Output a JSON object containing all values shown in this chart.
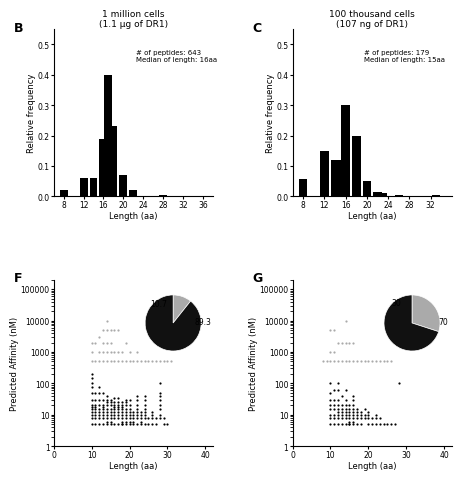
{
  "panel_B": {
    "label": "B",
    "title": "1 million cells\n(1.1 μg of DR1)",
    "annotation": "# of peptides: 643\nMedian of length: 16aa",
    "xlabel": "Length (aa)",
    "ylabel": "Relative frequency",
    "xlim": [
      6,
      38
    ],
    "xticks": [
      8,
      12,
      16,
      20,
      24,
      28,
      32,
      36
    ],
    "ylim": [
      0,
      0.55
    ],
    "yticks": [
      0.0,
      0.1,
      0.2,
      0.3,
      0.4,
      0.5
    ],
    "bar_positions": [
      8,
      12,
      14,
      16,
      17,
      18,
      20,
      22,
      28
    ],
    "bar_heights": [
      0.02,
      0.06,
      0.06,
      0.19,
      0.4,
      0.23,
      0.07,
      0.02,
      0.005
    ]
  },
  "panel_C": {
    "label": "C",
    "title": "100 thousand cells\n(107 ng of DR1)",
    "annotation": "# of peptides: 179\nMedian of length: 15aa",
    "xlabel": "Length (aa)",
    "ylabel": "Relative frequency",
    "xlim": [
      6,
      36
    ],
    "xticks": [
      8,
      12,
      16,
      20,
      24,
      28,
      32
    ],
    "ylim": [
      0,
      0.55
    ],
    "yticks": [
      0.0,
      0.1,
      0.2,
      0.3,
      0.4,
      0.5
    ],
    "bar_positions": [
      8,
      12,
      14,
      15,
      16,
      18,
      20,
      22,
      23,
      26,
      33
    ],
    "bar_heights": [
      0.055,
      0.15,
      0.12,
      0.12,
      0.3,
      0.2,
      0.05,
      0.015,
      0.01,
      0.005,
      0.005
    ]
  },
  "panel_F": {
    "label": "F",
    "xlabel": "Length (aa)",
    "ylabel": "Predicted Affinity (nM)",
    "xlim": [
      0,
      42
    ],
    "xticks": [
      0,
      10,
      20,
      30,
      40
    ],
    "pie_values": [
      10.7,
      89.3
    ],
    "pie_colors": [
      "#aaaaaa",
      "#111111"
    ],
    "pie_labels": [
      "10.7",
      "89.3"
    ],
    "black_dots_x": [
      10,
      10,
      10,
      10,
      10,
      10,
      10,
      10,
      10,
      10,
      10,
      10,
      10,
      11,
      11,
      11,
      11,
      11,
      11,
      11,
      11,
      11,
      12,
      12,
      12,
      12,
      12,
      12,
      12,
      12,
      12,
      13,
      13,
      13,
      13,
      13,
      13,
      13,
      13,
      13,
      14,
      14,
      14,
      14,
      14,
      14,
      14,
      14,
      14,
      14,
      15,
      15,
      15,
      15,
      15,
      15,
      15,
      15,
      15,
      16,
      16,
      16,
      16,
      16,
      16,
      16,
      16,
      16,
      17,
      17,
      17,
      17,
      17,
      17,
      17,
      17,
      17,
      18,
      18,
      18,
      18,
      18,
      18,
      18,
      18,
      18,
      18,
      19,
      19,
      19,
      19,
      19,
      19,
      19,
      19,
      19,
      20,
      20,
      20,
      20,
      20,
      20,
      20,
      20,
      21,
      21,
      21,
      21,
      21,
      22,
      22,
      22,
      22,
      22,
      22,
      22,
      22,
      23,
      23,
      23,
      23,
      23,
      24,
      24,
      24,
      24,
      24,
      24,
      24,
      24,
      25,
      25,
      26,
      26,
      26,
      26,
      27,
      27,
      28,
      28,
      28,
      28,
      28,
      28,
      28,
      28,
      29,
      29,
      30
    ],
    "black_dots_y": [
      5,
      8,
      10,
      12,
      15,
      18,
      20,
      30,
      50,
      80,
      100,
      150,
      200,
      5,
      8,
      10,
      12,
      15,
      18,
      20,
      30,
      50,
      5,
      8,
      10,
      12,
      15,
      20,
      30,
      50,
      80,
      5,
      8,
      10,
      12,
      15,
      18,
      20,
      30,
      50,
      5,
      6,
      8,
      10,
      12,
      15,
      20,
      25,
      30,
      40,
      5,
      6,
      8,
      10,
      12,
      15,
      20,
      25,
      30,
      5,
      8,
      10,
      12,
      15,
      18,
      20,
      25,
      35,
      5,
      8,
      10,
      12,
      15,
      18,
      20,
      25,
      35,
      5,
      6,
      8,
      10,
      12,
      15,
      18,
      20,
      25,
      5,
      6,
      8,
      10,
      12,
      15,
      20,
      25,
      30,
      5,
      6,
      8,
      10,
      12,
      15,
      20,
      30,
      5,
      6,
      8,
      10,
      12,
      5,
      8,
      10,
      12,
      15,
      20,
      30,
      40,
      5,
      6,
      8,
      10,
      12,
      5,
      8,
      10,
      12,
      15,
      20,
      30,
      40,
      5,
      8,
      5,
      8,
      10,
      12,
      5,
      8,
      5,
      8,
      10,
      15,
      20,
      30,
      40,
      50,
      100,
      5,
      8,
      5
    ],
    "gray_dots_x": [
      10,
      10,
      10,
      11,
      11,
      12,
      12,
      12,
      13,
      13,
      13,
      13,
      14,
      14,
      14,
      14,
      14,
      15,
      15,
      15,
      15,
      16,
      16,
      16,
      17,
      17,
      17,
      18,
      18,
      19,
      19,
      20,
      20,
      21,
      22,
      22,
      23,
      24,
      25,
      26,
      27,
      28,
      29,
      30,
      31
    ],
    "gray_dots_y": [
      500,
      1000,
      2000,
      500,
      2000,
      500,
      1000,
      3000,
      500,
      1000,
      2000,
      5000,
      500,
      1000,
      2000,
      5000,
      10000,
      500,
      1000,
      2000,
      5000,
      500,
      1000,
      5000,
      500,
      1000,
      5000,
      500,
      1000,
      500,
      2000,
      500,
      1000,
      500,
      500,
      1000,
      500,
      500,
      500,
      500,
      500,
      500,
      500,
      500,
      500
    ]
  },
  "panel_G": {
    "label": "G",
    "xlabel": "Length (aa)",
    "ylabel": "Predicted Affinity (nM)",
    "xlim": [
      0,
      42
    ],
    "xticks": [
      0,
      10,
      20,
      30,
      40
    ],
    "pie_values": [
      30,
      70
    ],
    "pie_colors": [
      "#aaaaaa",
      "#111111"
    ],
    "pie_labels": [
      "30",
      "70"
    ],
    "black_dots_x": [
      10,
      10,
      10,
      10,
      10,
      10,
      10,
      10,
      11,
      11,
      11,
      11,
      11,
      11,
      11,
      12,
      12,
      12,
      12,
      12,
      12,
      12,
      12,
      12,
      13,
      13,
      13,
      13,
      13,
      13,
      13,
      14,
      14,
      14,
      14,
      14,
      14,
      14,
      14,
      15,
      15,
      15,
      15,
      15,
      15,
      15,
      15,
      16,
      16,
      16,
      16,
      16,
      16,
      16,
      16,
      16,
      17,
      17,
      17,
      17,
      17,
      18,
      18,
      18,
      18,
      19,
      19,
      19,
      20,
      20,
      20,
      20,
      21,
      21,
      22,
      22,
      22,
      23,
      23,
      24,
      25,
      26,
      27,
      28
    ],
    "black_dots_y": [
      5,
      8,
      10,
      15,
      20,
      30,
      50,
      100,
      5,
      8,
      10,
      15,
      20,
      30,
      60,
      5,
      8,
      10,
      12,
      15,
      20,
      30,
      60,
      100,
      5,
      8,
      10,
      12,
      15,
      20,
      40,
      5,
      8,
      10,
      12,
      15,
      20,
      30,
      60,
      5,
      6,
      8,
      10,
      12,
      15,
      20,
      5,
      6,
      8,
      10,
      12,
      15,
      20,
      30,
      40,
      5,
      8,
      10,
      12,
      15,
      5,
      8,
      10,
      12,
      5,
      8,
      10,
      15,
      5,
      8,
      10,
      12,
      5,
      8,
      5,
      8,
      10,
      5,
      8,
      5,
      5,
      5,
      5,
      100
    ],
    "gray_dots_x": [
      8,
      9,
      10,
      10,
      10,
      11,
      11,
      11,
      12,
      12,
      13,
      13,
      14,
      14,
      14,
      15,
      15,
      16,
      16,
      17,
      18,
      19,
      20,
      21,
      22,
      23,
      24,
      25,
      26
    ],
    "gray_dots_y": [
      500,
      500,
      500,
      1000,
      5000,
      500,
      1000,
      5000,
      500,
      2000,
      500,
      2000,
      500,
      2000,
      10000,
      500,
      2000,
      500,
      2000,
      500,
      500,
      500,
      500,
      500,
      500,
      500,
      500,
      500,
      500
    ]
  }
}
